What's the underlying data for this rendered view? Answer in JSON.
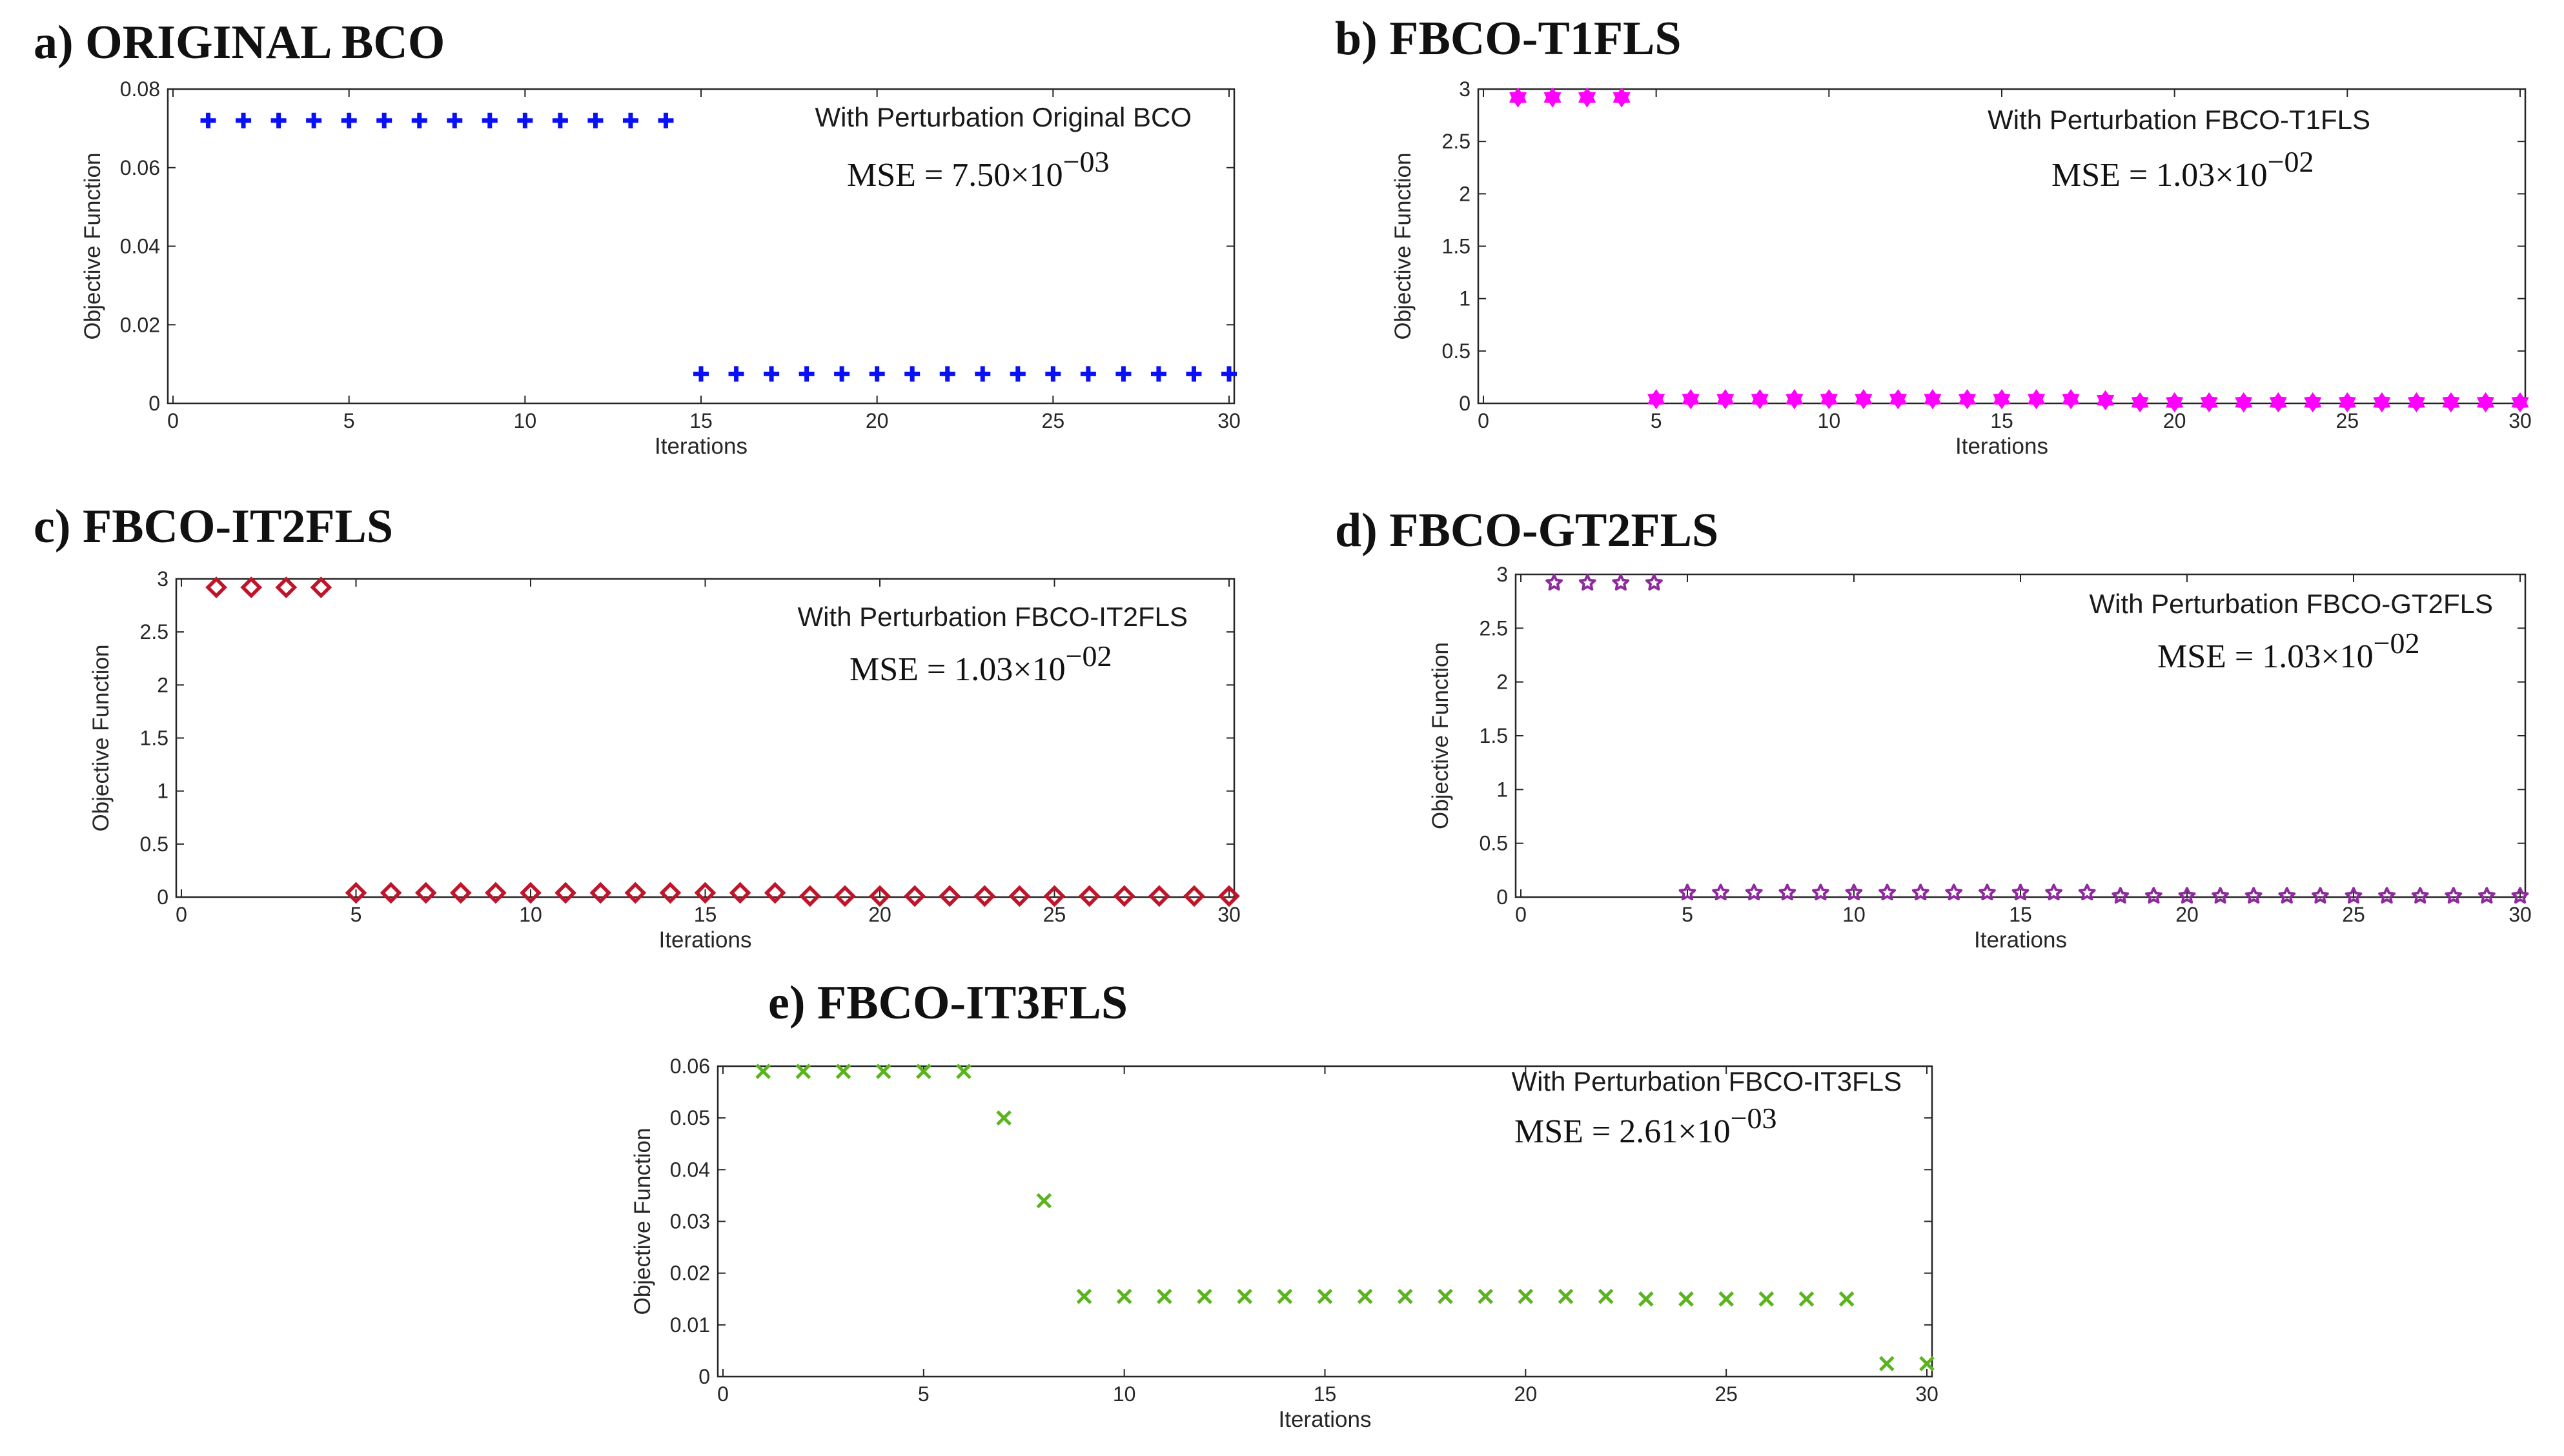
{
  "colors": {
    "a": "#0a10f5",
    "b": "#ff00ff",
    "c": "#c0142a",
    "d": "#8e2a9e",
    "e": "#5ab41e",
    "axis": "#262626"
  },
  "chart_data": [
    {
      "id": "a",
      "type": "scatter",
      "panel_title": "a) ORIGINAL BCO",
      "legend": "With Perturbation Original BCO",
      "mse_text": "MSE = 7.50×10",
      "mse_exp": "−03",
      "xlabel": "Iterations",
      "ylabel": "Objective Function",
      "xlim": [
        0,
        30
      ],
      "ylim": [
        0,
        0.08
      ],
      "xticks": [
        0,
        5,
        10,
        15,
        20,
        25,
        30
      ],
      "yticks": [
        0,
        0.02,
        0.04,
        0.06,
        0.08
      ],
      "ytick_labels": [
        "0",
        "0.02",
        "0.04",
        "0.06",
        "0.08"
      ],
      "marker": "plus",
      "series": [
        {
          "name": "With Perturbation Original BCO",
          "x": [
            1,
            2,
            3,
            4,
            5,
            6,
            7,
            8,
            9,
            10,
            11,
            12,
            13,
            14,
            15,
            16,
            17,
            18,
            19,
            20,
            21,
            22,
            23,
            24,
            25,
            26,
            27,
            28,
            29,
            30
          ],
          "y": [
            0.072,
            0.072,
            0.072,
            0.072,
            0.072,
            0.072,
            0.072,
            0.072,
            0.072,
            0.072,
            0.072,
            0.072,
            0.072,
            0.072,
            0.0075,
            0.0075,
            0.0075,
            0.0075,
            0.0075,
            0.0075,
            0.0075,
            0.0075,
            0.0075,
            0.0075,
            0.0075,
            0.0075,
            0.0075,
            0.0075,
            0.0075,
            0.0075
          ]
        }
      ]
    },
    {
      "id": "b",
      "type": "scatter",
      "panel_title": "b) FBCO-T1FLS",
      "legend": "With Perturbation FBCO-T1FLS",
      "mse_text": "MSE = 1.03×10",
      "mse_exp": "−02",
      "xlabel": "Iterations",
      "ylabel": "Objective Function",
      "xlim": [
        0,
        30
      ],
      "ylim": [
        0,
        3
      ],
      "xticks": [
        0,
        5,
        10,
        15,
        20,
        25,
        30
      ],
      "yticks": [
        0,
        0.5,
        1,
        1.5,
        2,
        2.5,
        3
      ],
      "ytick_labels": [
        "0",
        "0.5",
        "1",
        "1.5",
        "2",
        "2.5",
        "3"
      ],
      "marker": "hexagram",
      "series": [
        {
          "name": "With Perturbation FBCO-T1FLS",
          "x": [
            1,
            2,
            3,
            4,
            5,
            6,
            7,
            8,
            9,
            10,
            11,
            12,
            13,
            14,
            15,
            16,
            17,
            18,
            19,
            20,
            21,
            22,
            23,
            24,
            25,
            26,
            27,
            28,
            29,
            30
          ],
          "y": [
            2.92,
            2.92,
            2.92,
            2.92,
            0.04,
            0.04,
            0.04,
            0.04,
            0.04,
            0.04,
            0.04,
            0.04,
            0.04,
            0.04,
            0.04,
            0.04,
            0.04,
            0.03,
            0.01,
            0.01,
            0.01,
            0.01,
            0.01,
            0.01,
            0.01,
            0.01,
            0.01,
            0.01,
            0.01,
            0.01
          ]
        }
      ]
    },
    {
      "id": "c",
      "type": "scatter",
      "panel_title": "c) FBCO-IT2FLS",
      "legend": "With Perturbation FBCO-IT2FLS",
      "mse_text": "MSE = 1.03×10",
      "mse_exp": "−02",
      "xlabel": "Iterations",
      "ylabel": "Objective Function",
      "xlim": [
        0,
        30
      ],
      "ylim": [
        0,
        3
      ],
      "xticks": [
        0,
        5,
        10,
        15,
        20,
        25,
        30
      ],
      "yticks": [
        0,
        0.5,
        1,
        1.5,
        2,
        2.5,
        3
      ],
      "ytick_labels": [
        "0",
        "0.5",
        "1",
        "1.5",
        "2",
        "2.5",
        "3"
      ],
      "marker": "diamond",
      "series": [
        {
          "name": "With Perturbation FBCO-IT2FLS",
          "x": [
            1,
            2,
            3,
            4,
            5,
            6,
            7,
            8,
            9,
            10,
            11,
            12,
            13,
            14,
            15,
            16,
            17,
            18,
            19,
            20,
            21,
            22,
            23,
            24,
            25,
            26,
            27,
            28,
            29,
            30
          ],
          "y": [
            2.92,
            2.92,
            2.92,
            2.92,
            0.04,
            0.04,
            0.04,
            0.04,
            0.04,
            0.04,
            0.04,
            0.04,
            0.04,
            0.04,
            0.04,
            0.04,
            0.04,
            0.01,
            0.01,
            0.01,
            0.01,
            0.01,
            0.01,
            0.01,
            0.01,
            0.01,
            0.01,
            0.01,
            0.01,
            0.01
          ]
        }
      ]
    },
    {
      "id": "d",
      "type": "scatter",
      "panel_title": "d) FBCO-GT2FLS",
      "legend": "With Perturbation FBCO-GT2FLS",
      "mse_text": "MSE = 1.03×10",
      "mse_exp": "−02",
      "xlabel": "Iterations",
      "ylabel": "Objective Function",
      "xlim": [
        0,
        30
      ],
      "ylim": [
        0,
        3
      ],
      "xticks": [
        0,
        5,
        10,
        15,
        20,
        25,
        30
      ],
      "yticks": [
        0,
        0.5,
        1,
        1.5,
        2,
        2.5,
        3
      ],
      "ytick_labels": [
        "0",
        "0.5",
        "1",
        "1.5",
        "2",
        "2.5",
        "3"
      ],
      "marker": "pentagram",
      "series": [
        {
          "name": "With Perturbation FBCO-GT2FLS",
          "x": [
            1,
            2,
            3,
            4,
            5,
            6,
            7,
            8,
            9,
            10,
            11,
            12,
            13,
            14,
            15,
            16,
            17,
            18,
            19,
            20,
            21,
            22,
            23,
            24,
            25,
            26,
            27,
            28,
            29,
            30
          ],
          "y": [
            2.92,
            2.92,
            2.92,
            2.92,
            0.04,
            0.04,
            0.04,
            0.04,
            0.04,
            0.04,
            0.04,
            0.04,
            0.04,
            0.04,
            0.04,
            0.04,
            0.04,
            0.01,
            0.01,
            0.01,
            0.01,
            0.01,
            0.01,
            0.01,
            0.01,
            0.01,
            0.01,
            0.01,
            0.01,
            0.01
          ]
        }
      ]
    },
    {
      "id": "e",
      "type": "scatter",
      "panel_title": "e) FBCO-IT3FLS",
      "legend": "With Perturbation FBCO-IT3FLS",
      "mse_text": "MSE = 2.61×10",
      "mse_exp": "−03",
      "xlabel": "Iterations",
      "ylabel": "Objective Function",
      "xlim": [
        0,
        30
      ],
      "ylim": [
        0,
        0.06
      ],
      "xticks": [
        0,
        5,
        10,
        15,
        20,
        25,
        30
      ],
      "yticks": [
        0,
        0.01,
        0.02,
        0.03,
        0.04,
        0.05,
        0.06
      ],
      "ytick_labels": [
        "0",
        "0.01",
        "0.02",
        "0.03",
        "0.04",
        "0.05",
        "0.06"
      ],
      "marker": "x",
      "series": [
        {
          "name": "With Perturbation FBCO-IT3FLS",
          "x": [
            1,
            2,
            3,
            4,
            5,
            6,
            7,
            8,
            9,
            10,
            11,
            12,
            13,
            14,
            15,
            16,
            17,
            18,
            19,
            20,
            21,
            22,
            23,
            24,
            25,
            26,
            27,
            28,
            29,
            30
          ],
          "y": [
            0.059,
            0.059,
            0.059,
            0.059,
            0.059,
            0.059,
            0.05,
            0.034,
            0.0155,
            0.0155,
            0.0155,
            0.0155,
            0.0155,
            0.0155,
            0.0155,
            0.0155,
            0.0155,
            0.0155,
            0.0155,
            0.0155,
            0.0155,
            0.0155,
            0.015,
            0.015,
            0.015,
            0.015,
            0.015,
            0.015,
            0.0025,
            0.0025
          ]
        }
      ]
    }
  ]
}
